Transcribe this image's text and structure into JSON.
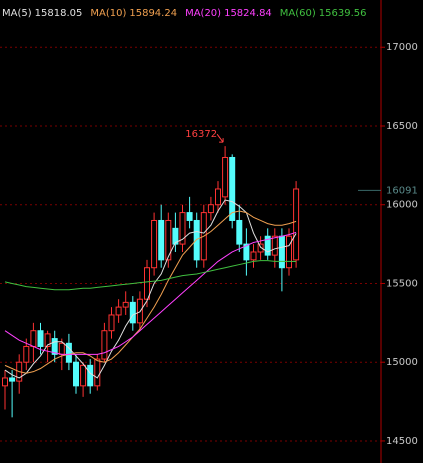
{
  "chart_data": {
    "type": "candlestick",
    "ohlc": [
      [
        14850,
        14950,
        14700,
        14900
      ],
      [
        14900,
        14950,
        14650,
        14880
      ],
      [
        14880,
        15050,
        14800,
        15000
      ],
      [
        15000,
        15150,
        14950,
        15100
      ],
      [
        15100,
        15250,
        15000,
        15200
      ],
      [
        15200,
        15250,
        15050,
        15100
      ],
      [
        15100,
        15200,
        15000,
        15180
      ],
      [
        15150,
        15200,
        15000,
        15050
      ],
      [
        15050,
        15150,
        14950,
        15120
      ],
      [
        15120,
        15180,
        14950,
        15000
      ],
      [
        15000,
        15050,
        14800,
        14850
      ],
      [
        14850,
        15000,
        14780,
        14980
      ],
      [
        14980,
        15020,
        14800,
        14850
      ],
      [
        14850,
        15050,
        14820,
        15020
      ],
      [
        15020,
        15250,
        15000,
        15200
      ],
      [
        15200,
        15350,
        15150,
        15300
      ],
      [
        15300,
        15400,
        15250,
        15350
      ],
      [
        15350,
        15450,
        15300,
        15380
      ],
      [
        15380,
        15420,
        15200,
        15250
      ],
      [
        15250,
        15450,
        15200,
        15400
      ],
      [
        15400,
        15650,
        15350,
        15600
      ],
      [
        15600,
        15950,
        15550,
        15900
      ],
      [
        15900,
        16000,
        15600,
        15650
      ],
      [
        15650,
        15950,
        15600,
        15900
      ],
      [
        15850,
        15950,
        15700,
        15750
      ],
      [
        15750,
        16000,
        15700,
        15950
      ],
      [
        15950,
        16050,
        15850,
        15900
      ],
      [
        15900,
        15950,
        15600,
        15650
      ],
      [
        15650,
        16000,
        15600,
        15950
      ],
      [
        15950,
        16050,
        15900,
        16000
      ],
      [
        16000,
        16150,
        15950,
        16100
      ],
      [
        16050,
        16372,
        16000,
        16300
      ],
      [
        16300,
        16320,
        15850,
        15900
      ],
      [
        15900,
        16000,
        15700,
        15750
      ],
      [
        15750,
        15850,
        15550,
        15650
      ],
      [
        15650,
        15750,
        15600,
        15700
      ],
      [
        15700,
        15800,
        15650,
        15750
      ],
      [
        15800,
        15850,
        15650,
        15680
      ],
      [
        15680,
        15850,
        15600,
        15800
      ],
      [
        15800,
        15850,
        15450,
        15600
      ],
      [
        15600,
        15850,
        15550,
        15800
      ],
      [
        15650,
        16150,
        15600,
        16100
      ]
    ],
    "up_color": "#ff3232",
    "down_color": "#54fcfc",
    "series": [
      {
        "name": "MA(5)",
        "legend_value": 15818.05,
        "color": "#e0e0e0",
        "values": [
          14950,
          14920,
          14900,
          14930,
          14990,
          15040,
          15110,
          15130,
          15130,
          15090,
          15040,
          14990,
          14930,
          14900,
          14980,
          15070,
          15140,
          15230,
          15300,
          15320,
          15390,
          15500,
          15560,
          15670,
          15760,
          15780,
          15820,
          15830,
          15820,
          15870,
          15960,
          16030,
          16020,
          15990,
          15950,
          15820,
          15730,
          15700,
          15720,
          15730,
          15740,
          15818.05
        ]
      },
      {
        "name": "MA(10)",
        "legend_value": 15894.24,
        "color": "#f0a050",
        "values": [
          14980,
          14960,
          14940,
          14930,
          14940,
          14960,
          14990,
          15020,
          15040,
          15050,
          15060,
          15060,
          15040,
          15010,
          15000,
          15020,
          15060,
          15110,
          15160,
          15210,
          15280,
          15350,
          15430,
          15520,
          15600,
          15680,
          15730,
          15780,
          15800,
          15830,
          15870,
          15910,
          15950,
          15960,
          15950,
          15920,
          15900,
          15880,
          15870,
          15870,
          15880,
          15894.24
        ]
      },
      {
        "name": "MA(20)",
        "legend_value": 15824.84,
        "color": "#ff40ff",
        "values": [
          15200,
          15170,
          15140,
          15120,
          15100,
          15080,
          15070,
          15060,
          15050,
          15050,
          15050,
          15050,
          15050,
          15050,
          15060,
          15080,
          15100,
          15130,
          15160,
          15200,
          15240,
          15280,
          15320,
          15360,
          15400,
          15440,
          15480,
          15520,
          15560,
          15600,
          15640,
          15670,
          15700,
          15720,
          15740,
          15760,
          15770,
          15780,
          15790,
          15800,
          15810,
          15824.84
        ]
      },
      {
        "name": "MA(60)",
        "legend_value": 15639.56,
        "color": "#40c040",
        "values": [
          15510,
          15500,
          15490,
          15480,
          15475,
          15470,
          15465,
          15460,
          15460,
          15460,
          15465,
          15470,
          15470,
          15475,
          15480,
          15485,
          15490,
          15495,
          15500,
          15505,
          15510,
          15515,
          15520,
          15530,
          15540,
          15550,
          15555,
          15560,
          15570,
          15580,
          15590,
          15600,
          15610,
          15620,
          15630,
          15640,
          15645,
          15645,
          15640,
          15640,
          15640,
          15639.56
        ]
      }
    ],
    "last_price": 16091,
    "ylim": [
      14360,
      17300
    ],
    "yticks": [
      14500,
      15000,
      15500,
      16000,
      16500,
      17000
    ],
    "grid": true
  }
}
